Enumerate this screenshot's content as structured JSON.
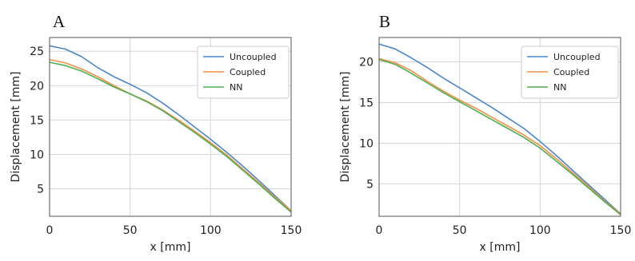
{
  "chart_data": [
    {
      "type": "line",
      "panel_label": "A",
      "xlabel": "x [mm]",
      "ylabel": "Displacement [mm]",
      "xlim": [
        0,
        150
      ],
      "ylim": [
        1,
        27
      ],
      "xticks": [
        0,
        50,
        100,
        150
      ],
      "yticks": [
        5,
        10,
        15,
        20,
        25
      ],
      "grid": true,
      "legend_position": "top-right",
      "series": [
        {
          "name": "Uncoupled",
          "color": "#4a86cc",
          "x": [
            0,
            10,
            20,
            30,
            40,
            50,
            60,
            70,
            80,
            90,
            100,
            110,
            120,
            130,
            140,
            150
          ],
          "y": [
            25.8,
            25.3,
            24.2,
            22.6,
            21.3,
            20.2,
            19.0,
            17.5,
            15.8,
            14.0,
            12.2,
            10.3,
            8.3,
            6.2,
            4.0,
            1.8
          ]
        },
        {
          "name": "Coupled",
          "color": "#f28e48",
          "x": [
            0,
            10,
            20,
            30,
            40,
            50,
            60,
            70,
            80,
            90,
            100,
            110,
            120,
            130,
            140,
            150
          ],
          "y": [
            23.8,
            23.3,
            22.4,
            21.3,
            20.0,
            18.8,
            17.8,
            16.5,
            15.0,
            13.4,
            11.7,
            9.9,
            7.9,
            5.9,
            3.8,
            1.8
          ]
        },
        {
          "name": "NN",
          "color": "#4caf50",
          "x": [
            0,
            10,
            20,
            30,
            40,
            50,
            60,
            70,
            80,
            90,
            100,
            110,
            120,
            130,
            140,
            150
          ],
          "y": [
            23.4,
            22.9,
            22.1,
            21.0,
            19.8,
            18.8,
            17.7,
            16.4,
            14.8,
            13.2,
            11.5,
            9.7,
            7.7,
            5.7,
            3.6,
            1.6
          ]
        }
      ]
    },
    {
      "type": "line",
      "panel_label": "B",
      "xlabel": "x [mm]",
      "ylabel": "Displacement [mm]",
      "xlim": [
        0,
        150
      ],
      "ylim": [
        1,
        23
      ],
      "xticks": [
        0,
        50,
        100,
        150
      ],
      "yticks": [
        5,
        10,
        15,
        20
      ],
      "grid": true,
      "legend_position": "top-right",
      "series": [
        {
          "name": "Uncoupled",
          "color": "#4a86cc",
          "x": [
            0,
            10,
            20,
            30,
            40,
            50,
            60,
            70,
            80,
            90,
            100,
            110,
            120,
            130,
            140,
            150
          ],
          "y": [
            22.2,
            21.6,
            20.5,
            19.3,
            18.0,
            16.8,
            15.6,
            14.4,
            13.1,
            11.8,
            10.2,
            8.5,
            6.7,
            4.9,
            3.1,
            1.3
          ]
        },
        {
          "name": "Coupled",
          "color": "#f28e48",
          "x": [
            0,
            10,
            20,
            30,
            40,
            50,
            60,
            70,
            80,
            90,
            100,
            110,
            120,
            130,
            140,
            150
          ],
          "y": [
            20.4,
            19.9,
            18.9,
            17.6,
            16.4,
            15.3,
            14.3,
            13.2,
            12.1,
            11.0,
            9.7,
            8.1,
            6.4,
            4.7,
            2.9,
            1.3
          ]
        },
        {
          "name": "NN",
          "color": "#4caf50",
          "x": [
            0,
            10,
            20,
            30,
            40,
            50,
            60,
            70,
            80,
            90,
            100,
            110,
            120,
            130,
            140,
            150
          ],
          "y": [
            20.3,
            19.7,
            18.6,
            17.4,
            16.2,
            15.1,
            14.0,
            12.9,
            11.8,
            10.7,
            9.4,
            7.8,
            6.2,
            4.5,
            2.8,
            1.2
          ]
        }
      ]
    }
  ]
}
